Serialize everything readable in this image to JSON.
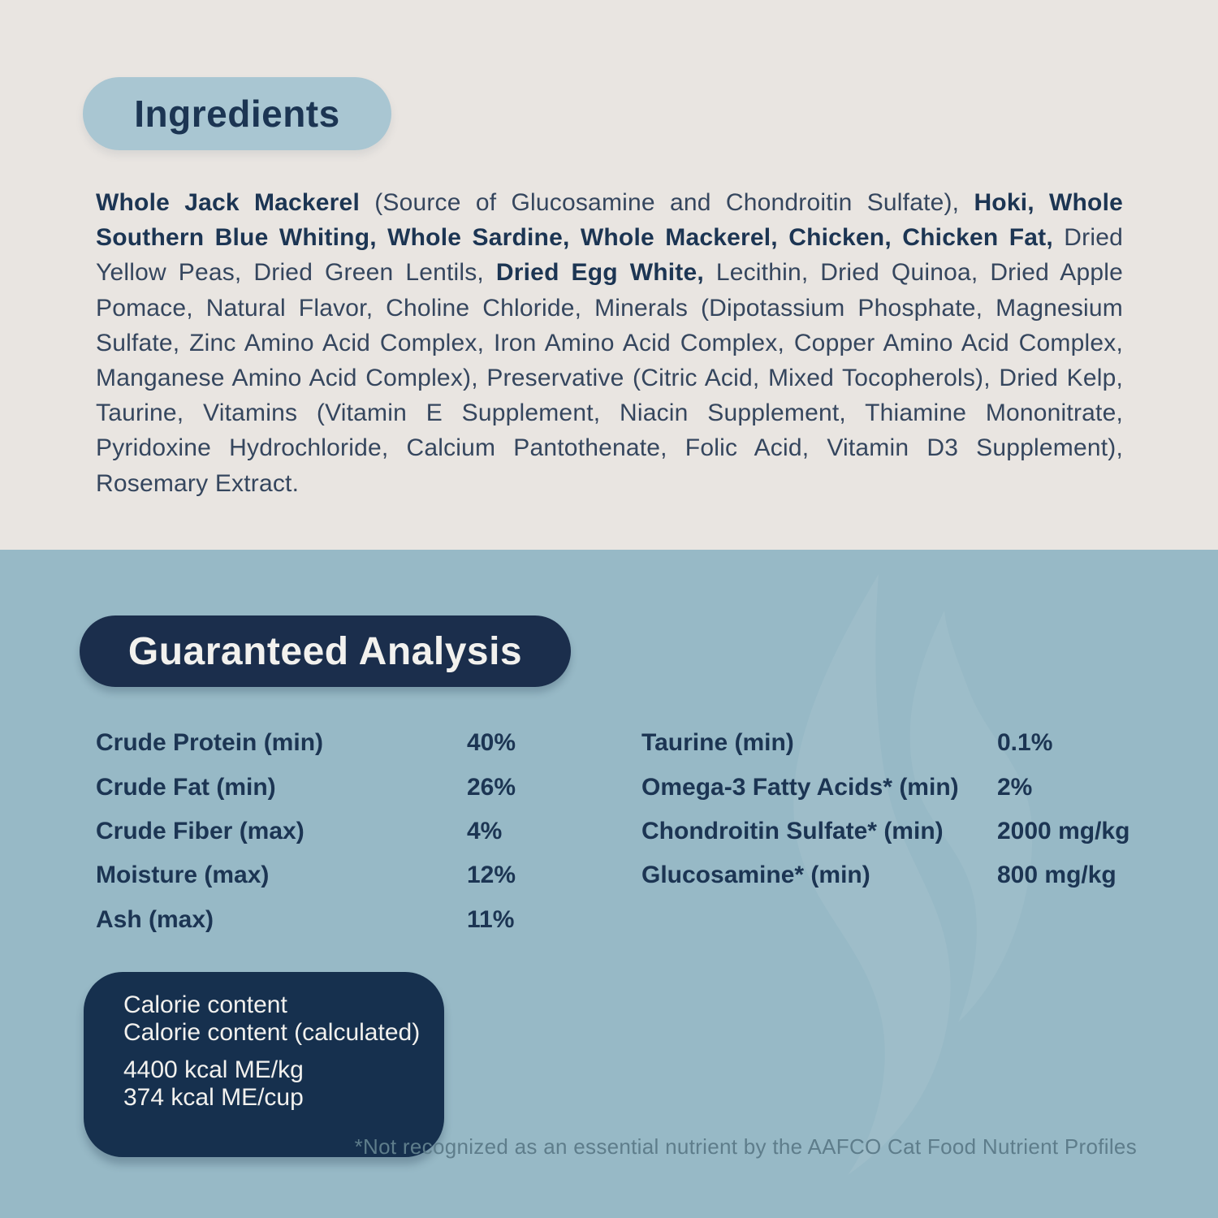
{
  "colors": {
    "top_background": "#e9e5e1",
    "bottom_background": "#97b9c6",
    "ingredients_pill": "#a9c6d2",
    "navy": "#1b2e4c",
    "text_navy": "#1c3553",
    "footnote_gray": "#5e7d8b",
    "watermark_blue": "#a4c1cc"
  },
  "ingredients": {
    "title": "Ingredients",
    "segments": [
      {
        "text": "Whole Jack Mackerel",
        "bold": true
      },
      {
        "text": " (Source of Glucosamine and Chondroitin Sulfate), ",
        "bold": false
      },
      {
        "text": "Hoki, Whole Southern Blue Whiting, Whole Sardine, Whole Mackerel, Chicken, Chicken Fat,",
        "bold": true
      },
      {
        "text": " Dried Yellow Peas, Dried Green Lentils, ",
        "bold": false
      },
      {
        "text": "Dried Egg White,",
        "bold": true
      },
      {
        "text": " Lecithin, Dried Quinoa, Dried Apple Pomace, Natural Flavor, Choline Chloride, Minerals (Dipotassium Phosphate, Magnesium Sulfate, Zinc Amino Acid Complex, Iron Amino Acid Complex, Copper Amino Acid Complex, Manganese Amino Acid Complex), Preservative (Citric Acid, Mixed Tocopherols), Dried Kelp, Taurine, Vitamins (Vitamin E Supplement, Niacin Supplement, Thiamine Mononitrate, Pyridoxine Hydrochloride, Calcium Pantothenate, Folic Acid, Vitamin D3 Supplement), Rosemary Extract.",
        "bold": false
      }
    ]
  },
  "guaranteed_analysis": {
    "title": "Guaranteed Analysis",
    "left_rows": [
      {
        "label": "Crude Protein (min)",
        "value": "40%"
      },
      {
        "label": "Crude Fat (min)",
        "value": "26%"
      },
      {
        "label": "Crude Fiber (max)",
        "value": "4%"
      },
      {
        "label": "Moisture (max)",
        "value": "12%"
      },
      {
        "label": "Ash (max)",
        "value": "11%"
      }
    ],
    "right_rows": [
      {
        "label": "Taurine (min)",
        "value": "0.1%"
      },
      {
        "label": "Omega-3 Fatty Acids* (min)",
        "value": "2%"
      },
      {
        "label": "Chondroitin Sulfate* (min)",
        "value": "2000 mg/kg"
      },
      {
        "label": "Glucosamine* (min)",
        "value": "800 mg/kg"
      }
    ],
    "calorie_box": {
      "heading_lines": [
        "Calorie content",
        "Calorie content (calculated)"
      ],
      "value_lines": [
        "4400 kcal ME/kg",
        "374 kcal ME/cup"
      ]
    },
    "footnote": "*Not recognized as an essential nutrient by the AAFCO Cat Food Nutrient Profiles"
  }
}
